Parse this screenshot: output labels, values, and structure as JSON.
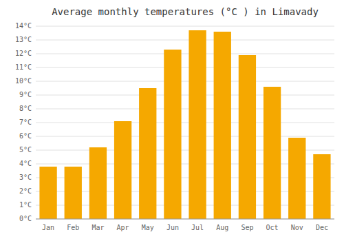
{
  "chart_data": {
    "type": "bar",
    "title": "Average monthly temperatures (°C ) in Limavady",
    "categories": [
      "Jan",
      "Feb",
      "Mar",
      "Apr",
      "May",
      "Jun",
      "Jul",
      "Aug",
      "Sep",
      "Oct",
      "Nov",
      "Dec"
    ],
    "values": [
      3.8,
      3.8,
      5.2,
      7.1,
      9.5,
      12.3,
      13.7,
      13.6,
      11.9,
      9.6,
      5.9,
      4.7
    ],
    "color": "#F5A800",
    "ylim": [
      0,
      14
    ],
    "yticks": [
      {
        "value": 0,
        "label": "0°C"
      },
      {
        "value": 1,
        "label": "1°C"
      },
      {
        "value": 2,
        "label": "2°C"
      },
      {
        "value": 3,
        "label": "3°C"
      },
      {
        "value": 4,
        "label": "4°C"
      },
      {
        "value": 5,
        "label": "5°C"
      },
      {
        "value": 6,
        "label": "6°C"
      },
      {
        "value": 7,
        "label": "7°C"
      },
      {
        "value": 8,
        "label": "8°C"
      },
      {
        "value": 9,
        "label": "9°C"
      },
      {
        "value": 10,
        "label": "10°C"
      },
      {
        "value": 11,
        "label": "11°C"
      },
      {
        "value": 12,
        "label": "12°C"
      },
      {
        "value": 13,
        "label": "13°C"
      },
      {
        "value": 14,
        "label": "14°C"
      }
    ],
    "grid": true
  }
}
